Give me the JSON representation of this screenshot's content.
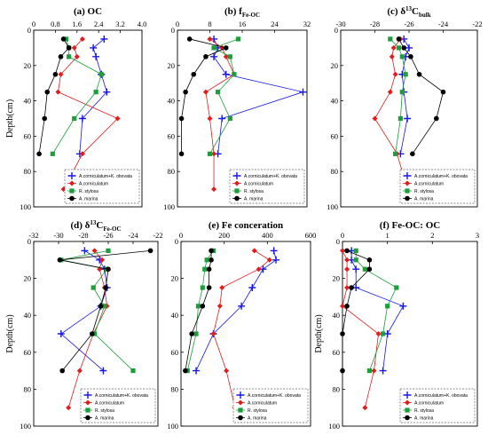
{
  "figure": {
    "legend_labels": [
      "A.corniculatum+K. obovata",
      "A.corniculatum",
      "R. stylosa",
      "A. marina"
    ]
  },
  "colors": {
    "A.corniculatum+K. obovata": "#1515ee",
    "A.corniculatum": "#e21b1b",
    "R. stylosa": "#1c9e3a",
    "A. marina": "#000000"
  },
  "chart_data": [
    {
      "type": "line",
      "title": "(a) OC",
      "ylabel": "Depth(cm)",
      "xlabel": "",
      "xlim": [
        0,
        4.0
      ],
      "xticks": [
        0,
        0.8,
        1.6,
        2.4,
        3.2,
        4.0
      ],
      "xtick_labels": [
        "0",
        "0.8",
        "1.6",
        "2.4",
        "3.2",
        "4.0"
      ],
      "ylim": [
        0,
        100
      ],
      "yticks": [
        0,
        20,
        40,
        60,
        80,
        100
      ],
      "ytick_labels": [
        "0",
        "20",
        "40",
        "60",
        "80",
        "100"
      ],
      "legend": "bottom-right",
      "series": [
        {
          "name": "A.corniculatum+K. obovata",
          "x": [
            2.6,
            2.2,
            2.3,
            2.5,
            2.7,
            1.8,
            1.7
          ],
          "y": [
            5,
            10,
            15,
            25,
            35,
            50,
            70
          ]
        },
        {
          "name": "A.corniculatum",
          "x": [
            1.8,
            1.5,
            1.6,
            1.0,
            0.9,
            3.1,
            1.8,
            1.1
          ],
          "y": [
            5,
            10,
            15,
            25,
            35,
            50,
            70,
            90
          ]
        },
        {
          "name": "R. stylosa",
          "x": [
            1.2,
            1.3,
            1.3,
            2.5,
            2.3,
            1.5,
            0.7
          ],
          "y": [
            5,
            10,
            15,
            25,
            35,
            50,
            70
          ]
        },
        {
          "name": "A. marina",
          "x": [
            1.1,
            1.3,
            1.0,
            0.8,
            0.5,
            0.4,
            0.2
          ],
          "y": [
            5,
            10,
            15,
            25,
            35,
            50,
            70
          ]
        }
      ]
    },
    {
      "type": "line",
      "title": "(b) f",
      "title_sub": "Fe-OC",
      "ylabel": "",
      "xlabel": "",
      "xlim": [
        0,
        32
      ],
      "xticks": [
        0,
        8,
        16,
        24,
        32
      ],
      "xtick_labels": [
        "0",
        "8",
        "16",
        "24",
        "32"
      ],
      "ylim": [
        0,
        100
      ],
      "yticks": [
        0,
        20,
        40,
        60,
        80,
        100
      ],
      "ytick_labels": [
        "0",
        "20",
        "40",
        "60",
        "80",
        "100"
      ],
      "legend": "bottom-right",
      "series": [
        {
          "name": "A.corniculatum+K. obovata",
          "x": [
            9,
            10,
            9,
            12,
            31,
            11,
            10
          ],
          "y": [
            5,
            10,
            15,
            25,
            35,
            50,
            70
          ]
        },
        {
          "name": "A.corniculatum",
          "x": [
            8,
            11,
            12,
            14,
            7,
            8,
            9,
            9
          ],
          "y": [
            5,
            10,
            15,
            25,
            35,
            50,
            70,
            90
          ]
        },
        {
          "name": "R. stylosa",
          "x": [
            15,
            9,
            13,
            14,
            10,
            13,
            8
          ],
          "y": [
            5,
            10,
            15,
            25,
            35,
            50,
            70
          ]
        },
        {
          "name": "A. marina",
          "x": [
            3,
            12,
            7,
            4,
            2,
            1,
            1
          ],
          "y": [
            5,
            10,
            15,
            25,
            35,
            50,
            70
          ]
        }
      ]
    },
    {
      "type": "line",
      "title": "(c) δ",
      "title_sup": "13",
      "title_tail": "C",
      "title_sub": "bulk",
      "ylabel": "",
      "xlabel": "",
      "xlim": [
        -30,
        -22
      ],
      "xticks": [
        -30,
        -28,
        -26,
        -24,
        -22
      ],
      "xtick_labels": [
        "-30",
        "-28",
        "-26",
        "-24",
        "-22"
      ],
      "ylim": [
        0,
        100
      ],
      "yticks": [
        0,
        20,
        40,
        60,
        80,
        100
      ],
      "ytick_labels": [
        "0",
        "20",
        "40",
        "60",
        "80",
        "100"
      ],
      "legend": "bottom-right",
      "series": [
        {
          "name": "A.corniculatum+K. obovata",
          "x": [
            -26.3,
            -26.0,
            -26.2,
            -26.4,
            -26.3,
            -26.1,
            -26.5
          ],
          "y": [
            5,
            10,
            15,
            25,
            35,
            50,
            70
          ]
        },
        {
          "name": "A.corniculatum",
          "x": [
            -26.5,
            -26.9,
            -27.0,
            -26.8,
            -27.1,
            -28.0,
            -26.7,
            -26.1
          ],
          "y": [
            5,
            10,
            15,
            25,
            35,
            50,
            70,
            90
          ]
        },
        {
          "name": "R. stylosa",
          "x": [
            -27.1,
            -26.6,
            -26.4,
            -26.2,
            -26.4,
            -26.5,
            -26.8
          ],
          "y": [
            5,
            10,
            15,
            25,
            35,
            50,
            70
          ]
        },
        {
          "name": "A. marina",
          "x": [
            -26.6,
            -26.3,
            -25.9,
            -25.4,
            -24.0,
            -24.4,
            -25.8
          ],
          "y": [
            5,
            10,
            15,
            25,
            35,
            50,
            70
          ]
        }
      ]
    },
    {
      "type": "line",
      "title": "(d) δ",
      "title_sup": "13",
      "title_tail": "C",
      "title_sub": "Fe-OC",
      "ylabel": "Depth(cm)",
      "xlabel": "",
      "xlim": [
        -32,
        -22
      ],
      "xticks": [
        -32,
        -30,
        -28,
        -26,
        -24,
        -22
      ],
      "xtick_labels": [
        "-32",
        "-30",
        "-28",
        "-26",
        "-24",
        "-22"
      ],
      "ylim": [
        0,
        100
      ],
      "yticks": [
        0,
        20,
        40,
        60,
        80,
        100
      ],
      "ytick_labels": [
        "0",
        "20",
        "40",
        "60",
        "80",
        "100"
      ],
      "legend": "bottom-right",
      "series": [
        {
          "name": "A.corniculatum+K. obovata",
          "x": [
            -27.9,
            -26.7,
            -26.3,
            -26.1,
            -26.6,
            -29.8,
            -26.4
          ],
          "y": [
            5,
            10,
            15,
            25,
            35,
            50,
            70
          ]
        },
        {
          "name": "A.corniculatum",
          "x": [
            -27.1,
            -26.5,
            -26.7,
            -26.3,
            -26.1,
            -27.2,
            -28.3,
            -29.2
          ],
          "y": [
            5,
            10,
            15,
            25,
            35,
            50,
            70,
            90
          ]
        },
        {
          "name": "R. stylosa",
          "x": [
            -26.0,
            -29.8,
            -26.1,
            -27.2,
            -26.3,
            -27.1,
            -24.0
          ],
          "y": [
            5,
            10,
            15,
            25,
            35,
            50,
            70
          ]
        },
        {
          "name": "A. marina",
          "x": [
            -22.6,
            -29.9,
            -26.0,
            -26.2,
            -26.6,
            -27.3,
            -29.7
          ],
          "y": [
            5,
            10,
            15,
            25,
            35,
            50,
            70
          ]
        }
      ]
    },
    {
      "type": "line",
      "title": "(e) Fe conceration",
      "ylabel": "",
      "xlabel": "",
      "xlim": [
        0,
        600
      ],
      "xticks": [
        0,
        200,
        400,
        600
      ],
      "xtick_labels": [
        "0",
        "200",
        "400",
        "600"
      ],
      "ylim": [
        0,
        100
      ],
      "yticks": [
        0,
        20,
        40,
        60,
        80,
        100
      ],
      "ytick_labels": [
        "0",
        "20",
        "40",
        "60",
        "80",
        "100"
      ],
      "legend": "bottom-right",
      "series": [
        {
          "name": "A.corniculatum+K. obovata",
          "x": [
            430,
            440,
            380,
            330,
            280,
            150,
            70
          ],
          "y": [
            5,
            10,
            15,
            25,
            35,
            50,
            70
          ]
        },
        {
          "name": "A.corniculatum",
          "x": [
            340,
            410,
            360,
            190,
            180,
            150,
            210,
            250
          ],
          "y": [
            5,
            10,
            15,
            25,
            35,
            50,
            70,
            90
          ]
        },
        {
          "name": "R. stylosa",
          "x": [
            150,
            120,
            110,
            100,
            80,
            70,
            30
          ],
          "y": [
            5,
            10,
            15,
            25,
            35,
            50,
            70
          ]
        },
        {
          "name": "A. marina",
          "x": [
            140,
            140,
            130,
            130,
            100,
            50,
            20
          ],
          "y": [
            5,
            10,
            15,
            25,
            35,
            50,
            70
          ]
        }
      ]
    },
    {
      "type": "line",
      "title": "(f) Fe-OC: OC",
      "ylabel": "Depth(cm)",
      "xlabel": "",
      "xlim": [
        0,
        3
      ],
      "xticks": [
        0,
        1,
        2,
        3
      ],
      "xtick_labels": [
        "0",
        "1",
        "2",
        "3"
      ],
      "ylim": [
        0,
        100
      ],
      "yticks": [
        0,
        20,
        40,
        60,
        80,
        100
      ],
      "ytick_labels": [
        "0",
        "20",
        "40",
        "60",
        "80",
        "100"
      ],
      "legend": "bottom-right",
      "series": [
        {
          "name": "A.corniculatum+K. obovata",
          "x": [
            0.2,
            0.2,
            0.3,
            0.3,
            1.35,
            1.0,
            0.9
          ],
          "y": [
            5,
            10,
            15,
            25,
            35,
            50,
            70
          ]
        },
        {
          "name": "A.corniculatum",
          "x": [
            0.0,
            0.1,
            0.1,
            0.1,
            0.0,
            0.8,
            0.7,
            0.5
          ],
          "y": [
            5,
            10,
            15,
            25,
            35,
            50,
            70,
            90
          ]
        },
        {
          "name": "R. stylosa",
          "x": [
            0.3,
            0.3,
            0.5,
            1.2,
            1.0,
            0.9,
            0.6
          ],
          "y": [
            5,
            10,
            15,
            25,
            35,
            50,
            70
          ]
        },
        {
          "name": "A. marina",
          "x": [
            0.1,
            0.6,
            0.6,
            0.2,
            0.1,
            0.0,
            0.0
          ],
          "y": [
            5,
            10,
            15,
            25,
            35,
            50,
            70
          ]
        }
      ]
    }
  ]
}
